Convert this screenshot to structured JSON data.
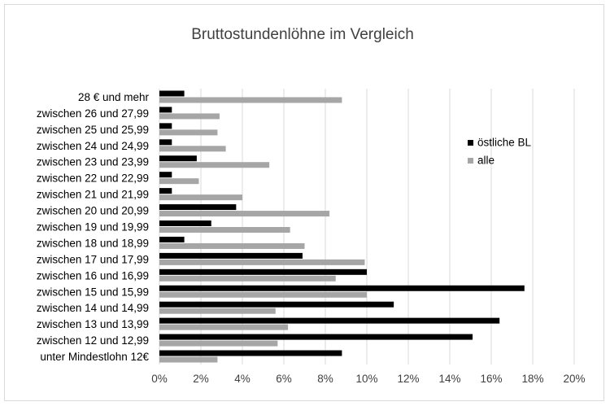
{
  "chart_data": {
    "type": "bar",
    "orientation": "horizontal",
    "title": "Bruttostundenlöhne im Vergleich",
    "categories": [
      "unter Mindestlohn 12€",
      "zwischen 12 und 12,99",
      "zwischen 13 und 13,99",
      "zwischen 14 und 14,99",
      "zwischen 15 und 15,99",
      "zwischen 16 und 16,99",
      "zwischen 17 und 17,99",
      "zwischen 18 und 18,99",
      "zwischen 19 und 19,99",
      "zwischen 20 und 20,99",
      "zwischen 21 und 21,99",
      "zwischen 22 und 22,99",
      "zwischen 23 und 23,99",
      "zwischen 24 und 24,99",
      "zwischen 25 und 25,99",
      "zwischen 26 und 27,99",
      "28 € und mehr"
    ],
    "series": [
      {
        "name": "östliche BL",
        "color": "#000000",
        "values": [
          8.8,
          15.1,
          16.4,
          11.3,
          17.6,
          10.0,
          6.9,
          1.2,
          2.5,
          3.7,
          0.6,
          0.6,
          1.8,
          0.6,
          0.6,
          0.6,
          1.2
        ]
      },
      {
        "name": "alle",
        "color": "#a6a6a6",
        "values": [
          2.8,
          5.7,
          6.2,
          5.6,
          10.0,
          8.5,
          9.9,
          7.0,
          6.3,
          8.2,
          4.0,
          1.9,
          5.3,
          3.2,
          2.8,
          2.9,
          8.8
        ]
      }
    ],
    "x_ticks": [
      "0%",
      "2%",
      "4%",
      "6%",
      "8%",
      "10%",
      "12%",
      "14%",
      "16%",
      "18%",
      "20%"
    ],
    "xlim": [
      0,
      20
    ],
    "grid": "vertical",
    "legend_position": "right"
  }
}
